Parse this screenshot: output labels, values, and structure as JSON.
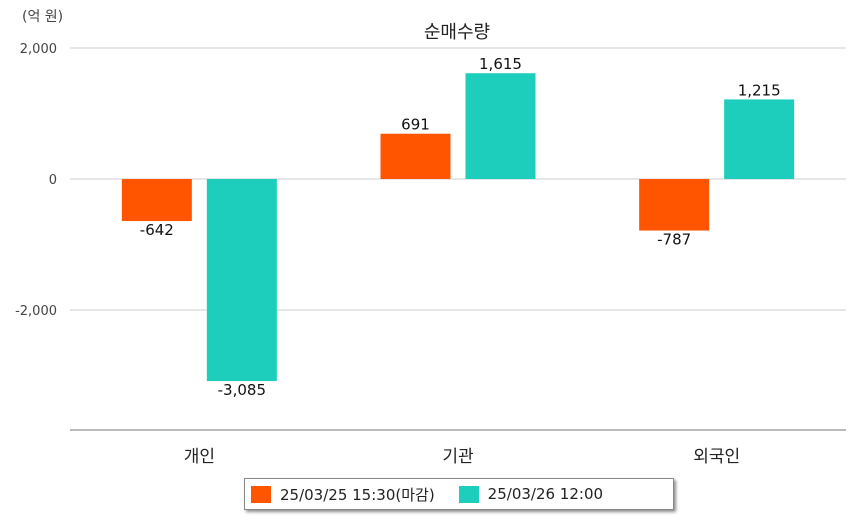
{
  "unit_label": "(억 원)",
  "chart_data": {
    "type": "bar",
    "title": "순매수량",
    "categories": [
      "개인",
      "기관",
      "외국인"
    ],
    "series": [
      {
        "name": "25/03/25 15:30(마감)",
        "color": "#ff5500",
        "values": [
          -642,
          691,
          -787
        ]
      },
      {
        "name": "25/03/26 12:00",
        "color": "#1ecebc",
        "values": [
          -3085,
          1615,
          1215
        ]
      }
    ],
    "data_labels": [
      [
        "-642",
        "691",
        "-787"
      ],
      [
        "-3,085",
        "1,615",
        "1,215"
      ]
    ],
    "yticks": [
      2000,
      0,
      -2000
    ],
    "ytick_labels": [
      "2,000",
      "0",
      "-2,000"
    ],
    "ylim": [
      -3800,
      2000
    ],
    "grid": true,
    "legend_position": "bottom"
  }
}
